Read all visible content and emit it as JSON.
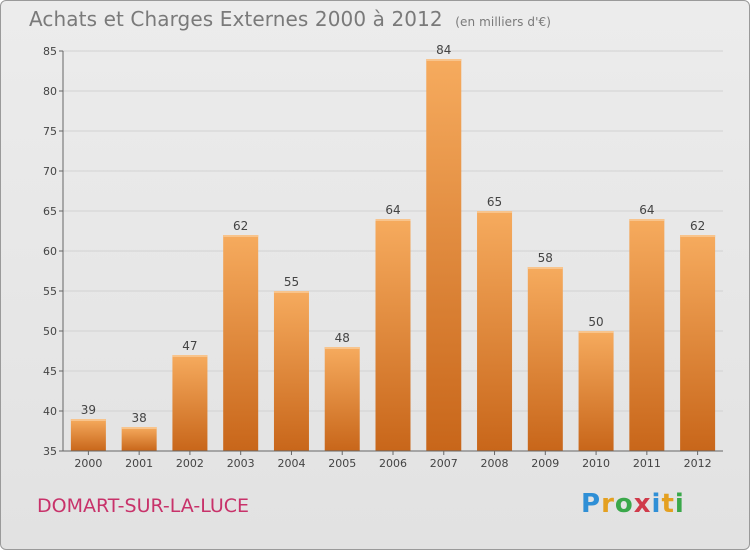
{
  "header": {
    "title": "Achats et Charges Externes 2000 à 2012",
    "unit": "(en milliers d'€)"
  },
  "footer": {
    "commune": "DOMART-SUR-LA-LUCE",
    "logo_letters": [
      "P",
      "r",
      "o",
      "x",
      "i",
      "t",
      "i"
    ],
    "logo_colors": [
      "#2f8fd6",
      "#e4a020",
      "#3aa84a",
      "#d03a4a",
      "#2f8fd6",
      "#e4a020",
      "#3aa84a"
    ]
  },
  "chart_data": {
    "type": "bar",
    "title": "Achats et Charges Externes 2000 à 2012",
    "subtitle": "(en milliers d'€)",
    "categories": [
      "2000",
      "2001",
      "2002",
      "2003",
      "2004",
      "2005",
      "2006",
      "2007",
      "2008",
      "2009",
      "2010",
      "2011",
      "2012"
    ],
    "values": [
      39,
      38,
      47,
      62,
      55,
      48,
      64,
      84,
      65,
      58,
      50,
      64,
      62
    ],
    "ylim": [
      35,
      85
    ],
    "yticks": [
      35,
      40,
      45,
      50,
      55,
      60,
      65,
      70,
      75,
      80,
      85
    ],
    "grid": true,
    "bar_color_top": "#f4a85a",
    "bar_color_bottom": "#c8661a"
  }
}
